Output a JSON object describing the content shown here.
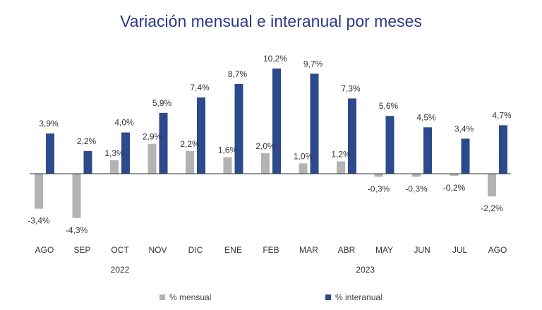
{
  "chart_data": {
    "type": "bar",
    "title": "Variación mensual e interanual por meses",
    "categories": [
      "AGO",
      "SEP",
      "OCT",
      "NOV",
      "DIC",
      "ENE",
      "FEB",
      "MAR",
      "ABR",
      "MAY",
      "JUN",
      "JUL",
      "AGO"
    ],
    "year_groups": [
      {
        "label": "2022",
        "start": 0,
        "end": 4
      },
      {
        "label": "2023",
        "start": 5,
        "end": 12
      }
    ],
    "series": [
      {
        "name": "% mensual",
        "color": "#b3b3b3",
        "values": [
          -3.4,
          -4.3,
          1.3,
          2.9,
          2.2,
          1.6,
          2.0,
          1.0,
          1.2,
          -0.3,
          -0.3,
          -0.2,
          -2.2
        ],
        "labels": [
          "-3,4%",
          "-4,3%",
          "1,3%",
          "2,9%",
          "2,2%",
          "1,6%",
          "2,0%",
          "1,0%",
          "1,2%",
          "-0,3%",
          "-0,3%",
          "-0,2%",
          "-2,2%"
        ]
      },
      {
        "name": "% interanual",
        "color": "#2d4a8c",
        "values": [
          3.9,
          2.2,
          4.0,
          5.9,
          7.4,
          8.7,
          10.2,
          9.7,
          7.3,
          5.6,
          4.5,
          3.4,
          4.7
        ],
        "labels": [
          "3,9%",
          "2,2%",
          "4,0%",
          "5,9%",
          "7,4%",
          "8,7%",
          "10,2%",
          "9,7%",
          "7,3%",
          "5,6%",
          "4,5%",
          "3,4%",
          "4,7%"
        ]
      }
    ],
    "legend_position": "bottom",
    "grid": false
  }
}
